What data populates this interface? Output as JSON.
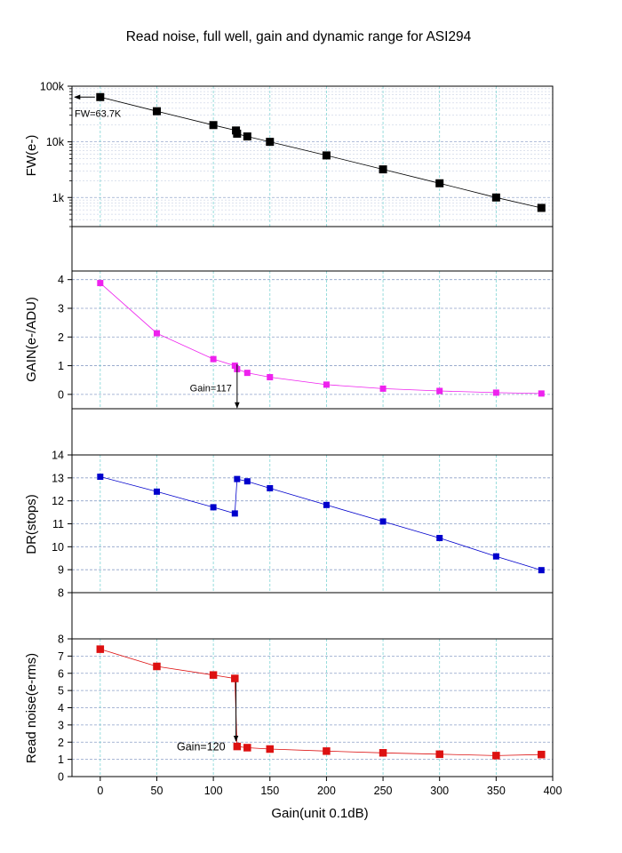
{
  "title": "Read noise, full well, gain and dynamic range for ASI294",
  "xlabel": "Gain(unit 0.1dB)",
  "x_ticks": [
    0,
    50,
    100,
    150,
    200,
    250,
    300,
    350,
    400
  ],
  "colors": {
    "fw": "#000000",
    "gain": "#ee22ee",
    "dr": "#0000cc",
    "noise": "#dd1111",
    "grid": "#8da0c8",
    "vgrid": "#7fd4d4"
  },
  "chart_data": [
    {
      "type": "line",
      "ylabel": "FW(e-)",
      "yscale": "log",
      "ylim": [
        300,
        100000
      ],
      "y_ticks": [
        {
          "value": 1000,
          "label": "1k"
        },
        {
          "value": 10000,
          "label": "10k"
        },
        {
          "value": 100000,
          "label": "100k"
        }
      ],
      "x": [
        0,
        50,
        100,
        120,
        121,
        130,
        150,
        200,
        250,
        300,
        350,
        390
      ],
      "y": [
        63700,
        35500,
        20000,
        16000,
        14000,
        12500,
        10000,
        5700,
        3200,
        1800,
        1000,
        650
      ],
      "annotations": [
        {
          "text": "FW=63.7K",
          "x": 0,
          "y": 63700
        }
      ]
    },
    {
      "type": "line",
      "ylabel": "GAIN(e-/ADU)",
      "ylim": [
        -0.5,
        4.3
      ],
      "y_ticks": [
        {
          "value": 0,
          "label": "0"
        },
        {
          "value": 1,
          "label": "1"
        },
        {
          "value": 2,
          "label": "2"
        },
        {
          "value": 3,
          "label": "3"
        },
        {
          "value": 4,
          "label": "4"
        }
      ],
      "x": [
        0,
        50,
        100,
        119,
        121,
        130,
        150,
        200,
        250,
        300,
        350,
        390
      ],
      "y": [
        3.88,
        2.13,
        1.23,
        1.0,
        0.88,
        0.75,
        0.6,
        0.34,
        0.2,
        0.12,
        0.06,
        0.03
      ],
      "annotations": [
        {
          "text": "Gain=117",
          "x": 121,
          "y": 0.88
        }
      ]
    },
    {
      "type": "line",
      "ylabel": "DR(stops)",
      "ylim": [
        8,
        14
      ],
      "y_ticks": [
        {
          "value": 8,
          "label": "8"
        },
        {
          "value": 9,
          "label": "9"
        },
        {
          "value": 10,
          "label": "10"
        },
        {
          "value": 11,
          "label": "11"
        },
        {
          "value": 12,
          "label": "12"
        },
        {
          "value": 13,
          "label": "13"
        },
        {
          "value": 14,
          "label": "14"
        }
      ],
      "x": [
        0,
        50,
        100,
        119,
        121,
        130,
        150,
        200,
        250,
        300,
        350,
        390
      ],
      "y": [
        13.05,
        12.4,
        11.72,
        11.45,
        12.95,
        12.85,
        12.55,
        11.82,
        11.1,
        10.38,
        9.58,
        8.98
      ]
    },
    {
      "type": "line",
      "ylabel": "Read noise(e-rms)",
      "ylim": [
        0,
        8
      ],
      "y_ticks": [
        {
          "value": 0,
          "label": "0"
        },
        {
          "value": 1,
          "label": "1"
        },
        {
          "value": 2,
          "label": "2"
        },
        {
          "value": 3,
          "label": "3"
        },
        {
          "value": 4,
          "label": "4"
        },
        {
          "value": 5,
          "label": "5"
        },
        {
          "value": 6,
          "label": "6"
        },
        {
          "value": 7,
          "label": "7"
        },
        {
          "value": 8,
          "label": "8"
        }
      ],
      "x": [
        0,
        50,
        100,
        119,
        121,
        130,
        150,
        200,
        250,
        300,
        350,
        390
      ],
      "y": [
        7.4,
        6.4,
        5.9,
        5.7,
        1.75,
        1.68,
        1.6,
        1.48,
        1.38,
        1.3,
        1.22,
        1.28
      ],
      "annotations": [
        {
          "text": "Gain=120",
          "x": 120,
          "y": 1.75
        }
      ]
    }
  ]
}
